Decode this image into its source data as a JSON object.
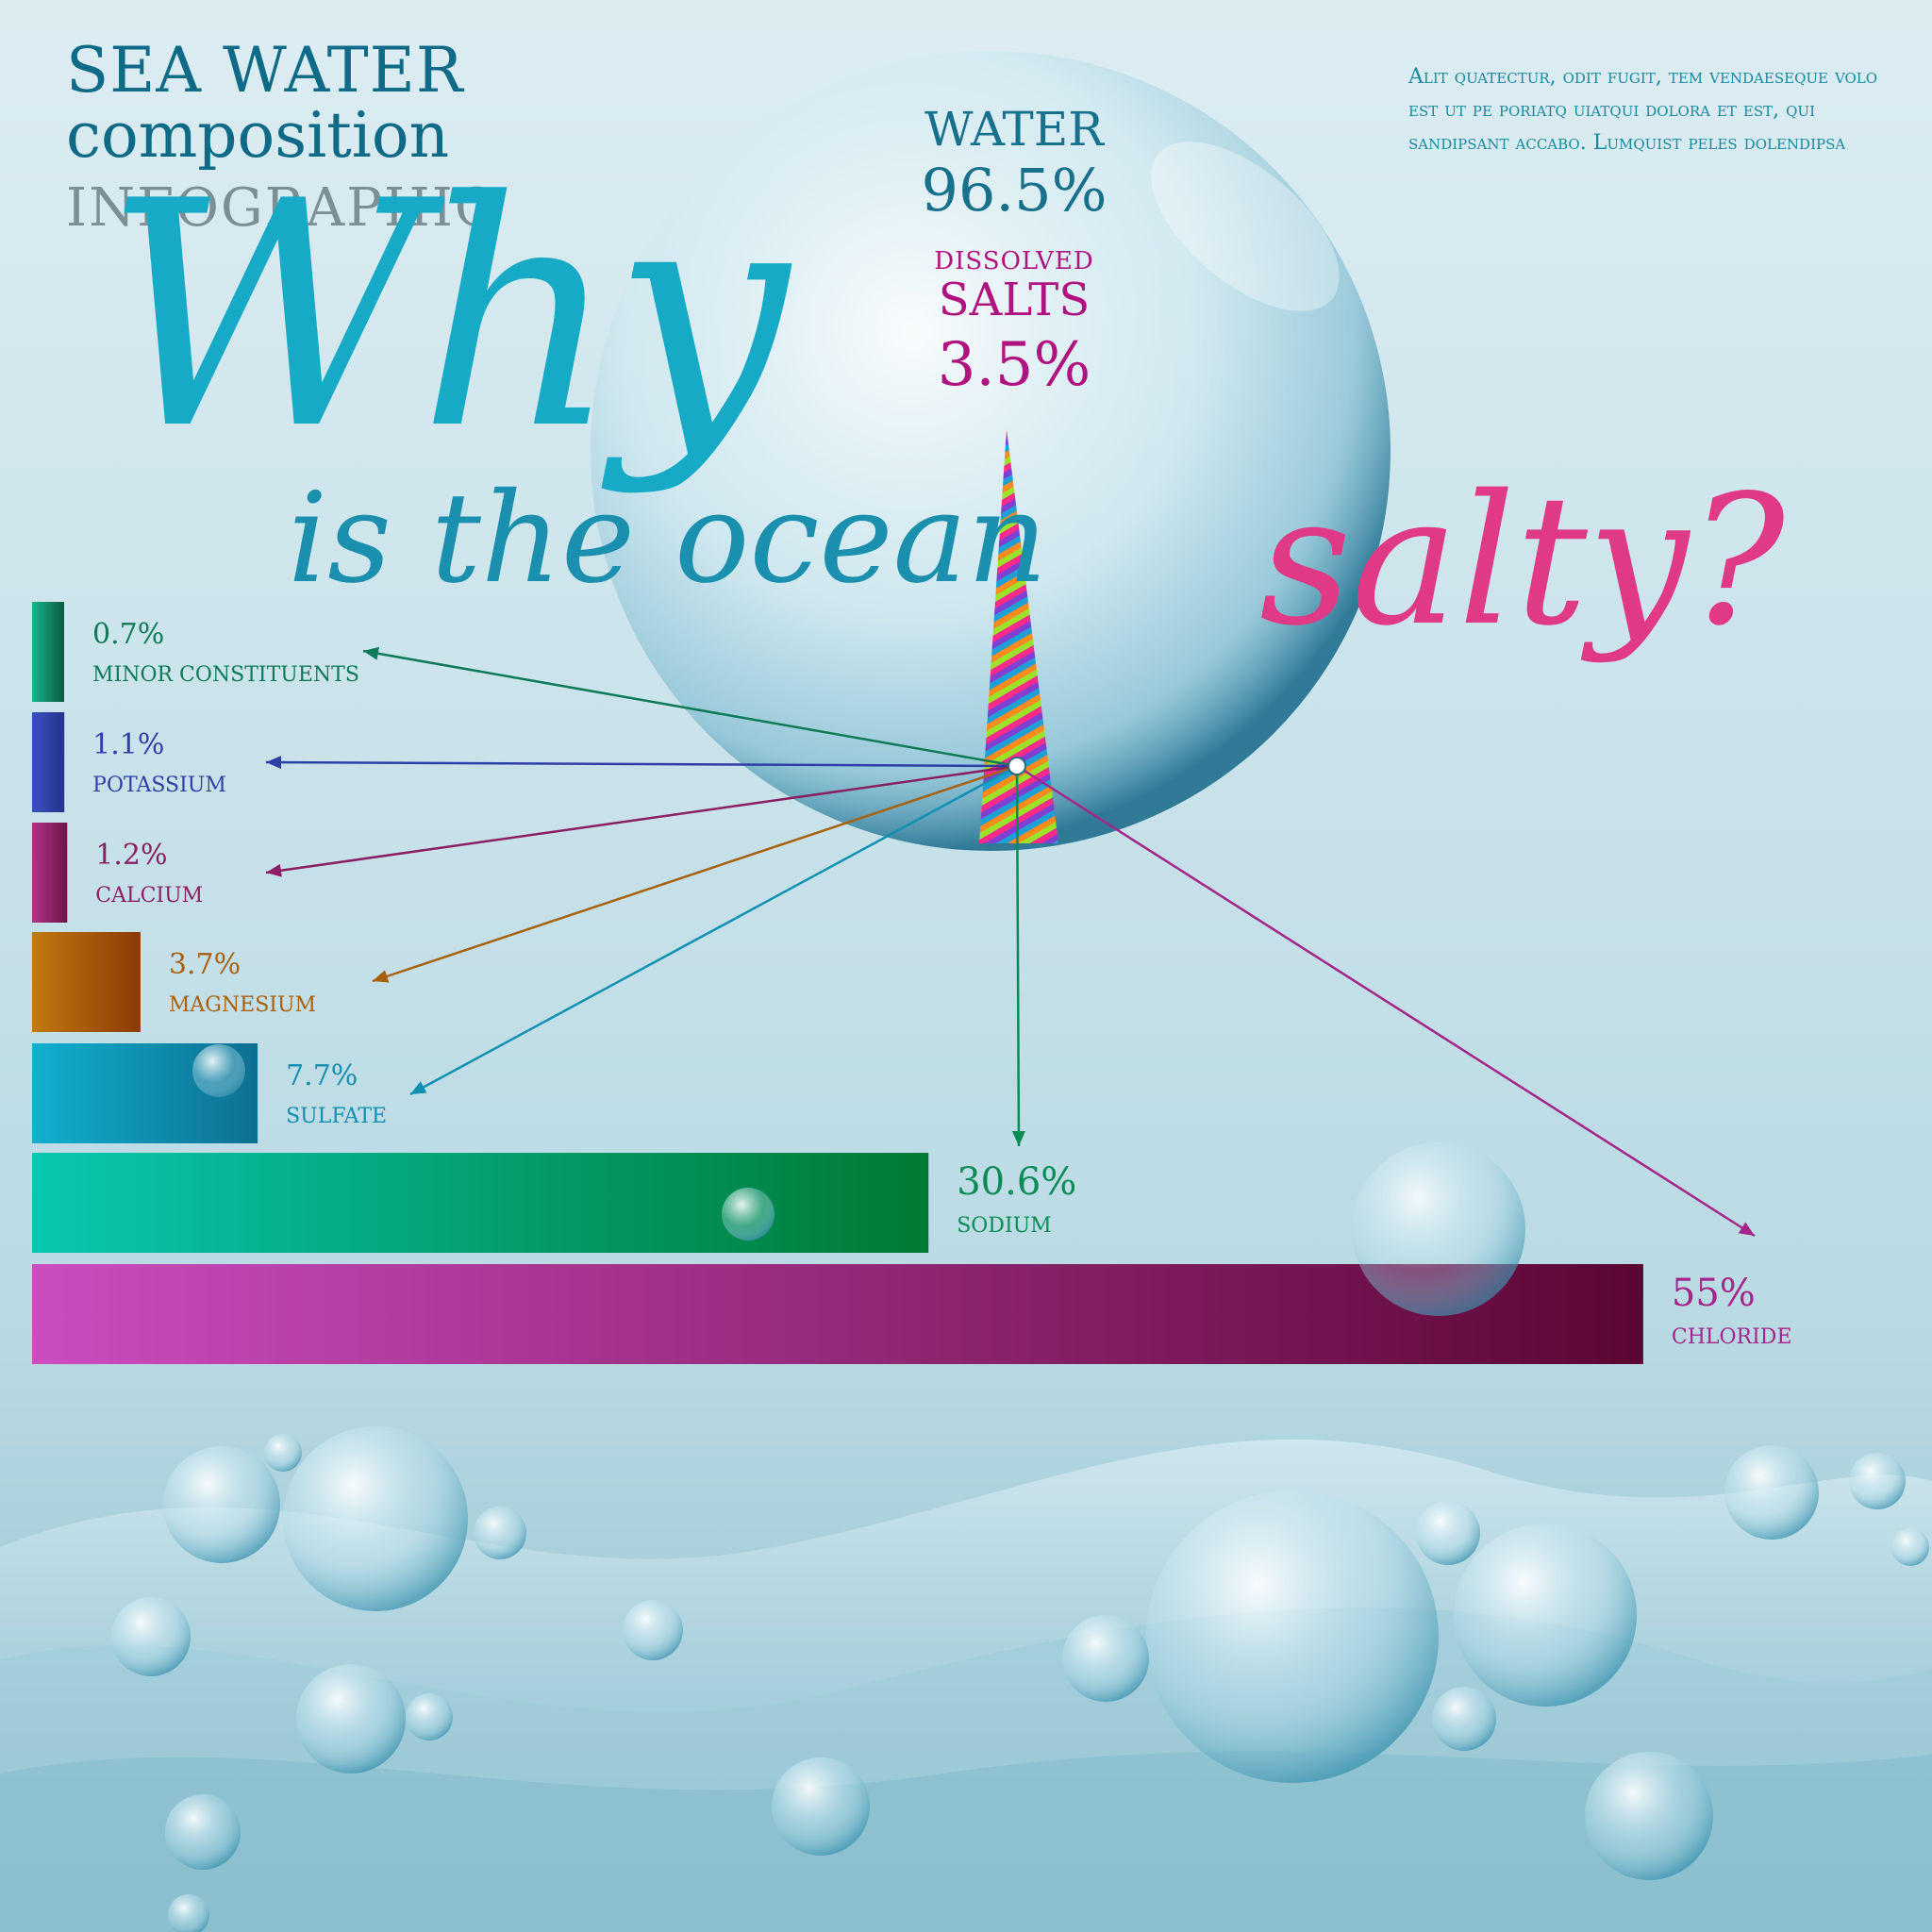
{
  "header": {
    "line1": "SEA WATER",
    "line2": "composition",
    "line3": "INFOGRAPHIC"
  },
  "headline": {
    "why": "Why",
    "ocean": "is the ocean",
    "salty": "salty?"
  },
  "body_text": "Alit quatectur, odit fugit, tem vendaeseque volo est ut pe poriatq uiatqui dolora et est, qui sandipsant accabo. Lumquist peles dolendipsa",
  "composition": {
    "water_label": "WATER",
    "water_value": "96.5%",
    "dissolved_label": "DISSOLVED",
    "salts_label": "SALTS",
    "salts_value": "3.5%"
  },
  "chart_data": {
    "type": "bar",
    "orientation": "horizontal",
    "categories": [
      "MINOR CONSTITUENTS",
      "POTASSIUM",
      "CALCIUM",
      "MAGNESIUM",
      "SULFATE",
      "SODIUM",
      "CHLORIDE"
    ],
    "values": [
      0.7,
      1.1,
      1.2,
      3.7,
      7.7,
      30.6,
      55
    ],
    "labels": [
      "0.7%",
      "1.1%",
      "1.2%",
      "3.7%",
      "7.7%",
      "30.6%",
      "55%"
    ],
    "colors": [
      "#0f7a58",
      "#2f3fa8",
      "#8a1f63",
      "#a7600c",
      "#0f8fb1",
      "#0a8a55",
      "#a4268a"
    ],
    "gradient_start": [
      "#16b68a",
      "#3a4fc2",
      "#b03386",
      "#c27a10",
      "#11b0cf",
      "#08c7b0",
      "#cc4cc0"
    ],
    "gradient_end": [
      "#0c5a3d",
      "#26338c",
      "#6e1449",
      "#8a3a06",
      "#0d6f91",
      "#007a33",
      "#5c0633"
    ],
    "title": "",
    "xlabel": "",
    "ylabel": ""
  }
}
